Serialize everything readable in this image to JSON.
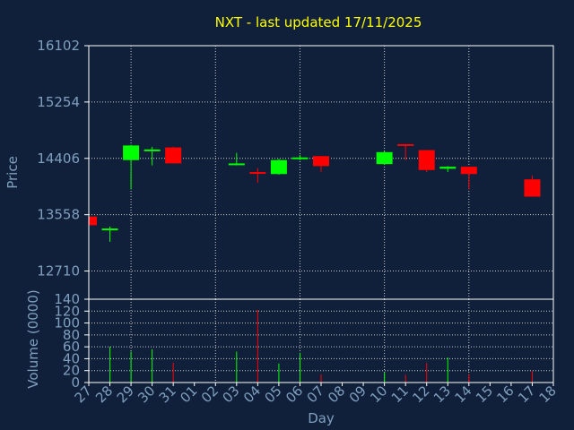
{
  "chart_data": [
    {
      "type": "candlestick",
      "title": "NXT - last updated 17/11/2025",
      "ylabel": "Price",
      "ylim": [
        12286,
        16102
      ],
      "yticks": [
        12710,
        13558,
        14406,
        15254,
        16102
      ],
      "grid": true,
      "categories": [
        "27",
        "28",
        "29",
        "30",
        "31",
        "01",
        "02",
        "03",
        "04",
        "05",
        "06",
        "07",
        "08",
        "09",
        "10",
        "11",
        "12",
        "13",
        "14",
        "15",
        "16",
        "17",
        "18"
      ],
      "candles": [
        {
          "day": "27",
          "open": 13530,
          "close": 13400,
          "high": 13530,
          "low": 13400,
          "color": "#ff0000"
        },
        {
          "day": "28",
          "open": 13330,
          "close": 13350,
          "high": 13380,
          "low": 13150,
          "color": "#00ff00"
        },
        {
          "day": "29",
          "open": 14380,
          "close": 14600,
          "high": 14610,
          "low": 13940,
          "color": "#00ff00"
        },
        {
          "day": "30",
          "open": 14520,
          "close": 14540,
          "high": 14580,
          "low": 14300,
          "color": "#00ff00"
        },
        {
          "day": "31",
          "open": 14570,
          "close": 14330,
          "high": 14580,
          "low": 14330,
          "color": "#ff0000"
        },
        {
          "day": "03",
          "open": 14320,
          "close": 14330,
          "high": 14490,
          "low": 14300,
          "color": "#00ff00"
        },
        {
          "day": "04",
          "open": 14200,
          "close": 14190,
          "high": 14260,
          "low": 14040,
          "color": "#ff0000"
        },
        {
          "day": "05",
          "open": 14170,
          "close": 14380,
          "high": 14400,
          "low": 14160,
          "color": "#00ff00"
        },
        {
          "day": "06",
          "open": 14400,
          "close": 14420,
          "high": 14460,
          "low": 14380,
          "color": "#00ff00"
        },
        {
          "day": "07",
          "open": 14440,
          "close": 14290,
          "high": 14440,
          "low": 14200,
          "color": "#ff0000"
        },
        {
          "day": "10",
          "open": 14320,
          "close": 14500,
          "high": 14510,
          "low": 14310,
          "color": "#00ff00"
        },
        {
          "day": "11",
          "open": 14620,
          "close": 14600,
          "high": 14620,
          "low": 14380,
          "color": "#ff0000"
        },
        {
          "day": "12",
          "open": 14530,
          "close": 14230,
          "high": 14530,
          "low": 14200,
          "color": "#ff0000"
        },
        {
          "day": "13",
          "open": 14250,
          "close": 14280,
          "high": 14290,
          "low": 14200,
          "color": "#00ff00"
        },
        {
          "day": "14",
          "open": 14280,
          "close": 14170,
          "high": 14280,
          "low": 13940,
          "color": "#ff0000"
        },
        {
          "day": "17",
          "open": 14090,
          "close": 13830,
          "high": 14150,
          "low": 13830,
          "color": "#ff0000"
        }
      ]
    },
    {
      "type": "bar",
      "xlabel": "Day",
      "ylabel": "Volume (0000)",
      "ylim": [
        0,
        140
      ],
      "yticks": [
        0,
        20,
        40,
        60,
        80,
        100,
        120,
        140
      ],
      "grid": true,
      "categories": [
        "27",
        "28",
        "29",
        "30",
        "31",
        "01",
        "02",
        "03",
        "04",
        "05",
        "06",
        "07",
        "08",
        "09",
        "10",
        "11",
        "12",
        "13",
        "14",
        "15",
        "16",
        "17",
        "18"
      ],
      "bars": [
        {
          "day": "27",
          "value": 0,
          "color": "#ff0000"
        },
        {
          "day": "28",
          "value": 60,
          "color": "#00ff00"
        },
        {
          "day": "29",
          "value": 52,
          "color": "#00ff00"
        },
        {
          "day": "30",
          "value": 56,
          "color": "#00ff00"
        },
        {
          "day": "31",
          "value": 33,
          "color": "#ff0000"
        },
        {
          "day": "03",
          "value": 52,
          "color": "#00ff00"
        },
        {
          "day": "04",
          "value": 122,
          "color": "#ff0000"
        },
        {
          "day": "05",
          "value": 32,
          "color": "#00ff00"
        },
        {
          "day": "06",
          "value": 50,
          "color": "#00ff00"
        },
        {
          "day": "07",
          "value": 14,
          "color": "#ff0000"
        },
        {
          "day": "10",
          "value": 17,
          "color": "#00ff00"
        },
        {
          "day": "11",
          "value": 13,
          "color": "#ff0000"
        },
        {
          "day": "12",
          "value": 33,
          "color": "#ff0000"
        },
        {
          "day": "13",
          "value": 42,
          "color": "#00ff00"
        },
        {
          "day": "14",
          "value": 14,
          "color": "#ff0000"
        },
        {
          "day": "17",
          "value": 19,
          "color": "#ff0000"
        }
      ]
    }
  ],
  "colors": {
    "background": "#10203a",
    "frame": "#ffffff",
    "grid": "#cccccc",
    "tick_text": "#7f9fbf",
    "title": "#ffff00",
    "up": "#00ff00",
    "down": "#ff0000"
  }
}
